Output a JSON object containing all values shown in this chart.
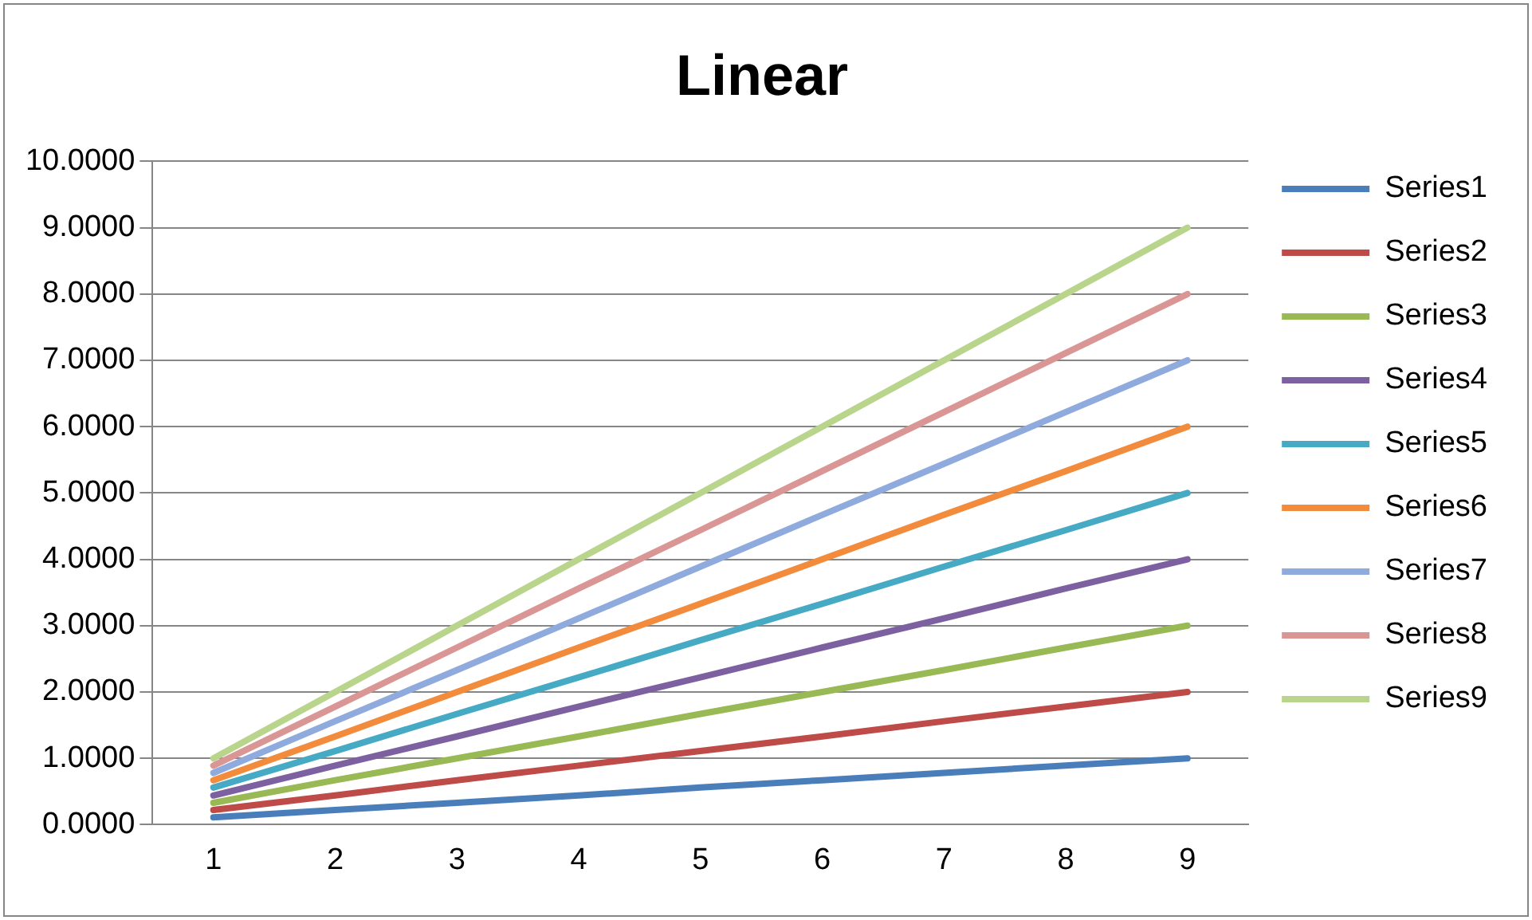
{
  "chart_data": {
    "type": "line",
    "title": "Linear",
    "categories": [
      "1",
      "2",
      "3",
      "4",
      "5",
      "6",
      "7",
      "8",
      "9"
    ],
    "series": [
      {
        "name": "Series1",
        "color": "#4a7ebb",
        "values": [
          0.11,
          0.22,
          0.33,
          0.44,
          0.56,
          0.67,
          0.78,
          0.89,
          1
        ]
      },
      {
        "name": "Series2",
        "color": "#be4b48",
        "values": [
          0.22,
          0.44,
          0.67,
          0.89,
          1.11,
          1.33,
          1.56,
          1.78,
          2
        ]
      },
      {
        "name": "Series3",
        "color": "#98b954",
        "values": [
          0.33,
          0.67,
          1,
          1.33,
          1.67,
          2,
          2.33,
          2.67,
          3
        ]
      },
      {
        "name": "Series4",
        "color": "#7d60a0",
        "values": [
          0.44,
          0.89,
          1.33,
          1.78,
          2.22,
          2.67,
          3.11,
          3.56,
          4
        ]
      },
      {
        "name": "Series5",
        "color": "#46aac5",
        "values": [
          0.56,
          1.11,
          1.67,
          2.22,
          2.78,
          3.33,
          3.89,
          4.44,
          5
        ]
      },
      {
        "name": "Series6",
        "color": "#f38b3c",
        "values": [
          0.67,
          1.33,
          2,
          2.67,
          3.33,
          4,
          4.67,
          5.33,
          6
        ]
      },
      {
        "name": "Series7",
        "color": "#8faadc",
        "values": [
          0.78,
          1.56,
          2.33,
          3.11,
          3.89,
          4.67,
          5.44,
          6.22,
          7
        ]
      },
      {
        "name": "Series8",
        "color": "#d99694",
        "values": [
          0.89,
          1.78,
          2.67,
          3.56,
          4.44,
          5.33,
          6.22,
          7.11,
          8
        ]
      },
      {
        "name": "Series9",
        "color": "#b9d48b",
        "values": [
          1,
          2,
          3,
          4,
          5,
          6,
          7,
          8,
          9
        ]
      }
    ],
    "ylim": [
      0,
      10
    ],
    "yticks": [
      {
        "value": 0,
        "label": "0.0000"
      },
      {
        "value": 1,
        "label": "1.0000"
      },
      {
        "value": 2,
        "label": "2.0000"
      },
      {
        "value": 3,
        "label": "3.0000"
      },
      {
        "value": 4,
        "label": "4.0000"
      },
      {
        "value": 5,
        "label": "5.0000"
      },
      {
        "value": 6,
        "label": "6.0000"
      },
      {
        "value": 7,
        "label": "7.0000"
      },
      {
        "value": 8,
        "label": "8.0000"
      },
      {
        "value": 9,
        "label": "9.0000"
      },
      {
        "value": 10,
        "label": "10.0000"
      }
    ],
    "grid": "y",
    "legend": "right",
    "marker": "none",
    "line_style": "solid"
  }
}
